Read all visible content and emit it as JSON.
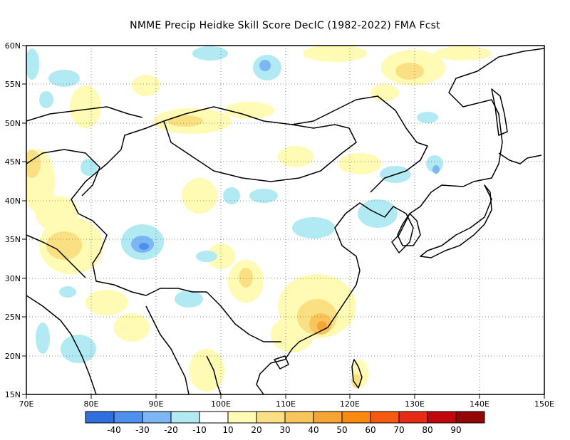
{
  "title": "NMME Precip Heidke Skill Score DecIC (1982-2022) FMA Fcst",
  "lat_labels": [
    "60N",
    "55N",
    "50N",
    "45N",
    "40N",
    "35N",
    "30N",
    "25N",
    "20N",
    "15N"
  ],
  "lon_labels": [
    "70E",
    "80E",
    "90E",
    "100E",
    "110E",
    "120E",
    "130E",
    "140E",
    "150E"
  ],
  "colorbar": {
    "colors": [
      "#2f6fe0",
      "#4f90ec",
      "#7cb6f4",
      "#b2eaf4",
      "#ffffff",
      "#fffab4",
      "#fbe083",
      "#f9c45b",
      "#f6a534",
      "#f88a11",
      "#f65a12",
      "#e52b14",
      "#c1060c",
      "#930606"
    ],
    "labels": [
      "-40",
      "-30",
      "-20",
      "-10",
      "10",
      "20",
      "30",
      "40",
      "50",
      "60",
      "70",
      "80",
      "90"
    ]
  }
}
